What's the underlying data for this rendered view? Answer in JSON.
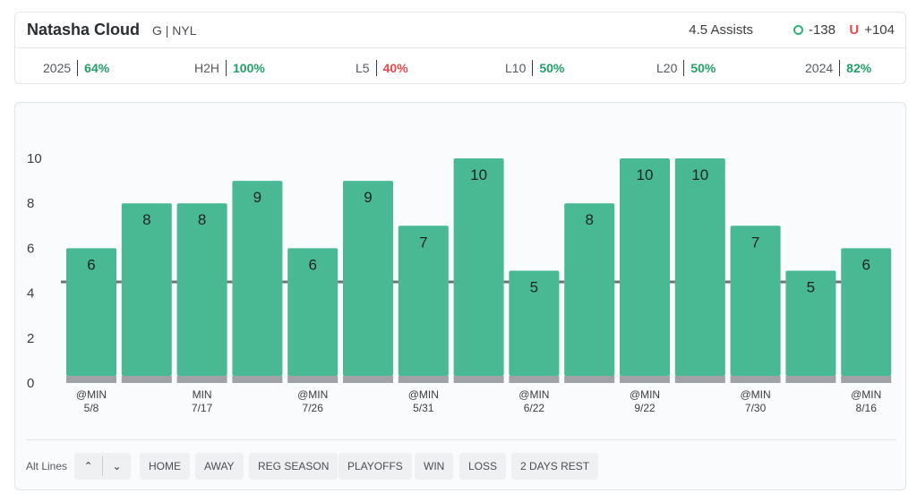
{
  "header": {
    "player_name": "Natasha Cloud",
    "player_meta": "G | NYL",
    "prop_line": "4.5 Assists",
    "over_odds": "-138",
    "under_label": "U",
    "under_odds": "+104"
  },
  "stats": [
    {
      "label": "2025",
      "value": "64%",
      "status": "good"
    },
    {
      "label": "H2H",
      "value": "100%",
      "status": "good"
    },
    {
      "label": "L5",
      "value": "40%",
      "status": "bad"
    },
    {
      "label": "L10",
      "value": "50%",
      "status": "good"
    },
    {
      "label": "L20",
      "value": "50%",
      "status": "good"
    },
    {
      "label": "2024",
      "value": "82%",
      "status": "good"
    }
  ],
  "colors": {
    "bar": "#48b992",
    "bar_base": "#9fa2a6",
    "line": "#6e7175",
    "good": "#23a06a",
    "bad": "#e5484d"
  },
  "chart_data": {
    "type": "bar",
    "values": [
      6,
      8,
      8,
      9,
      6,
      9,
      7,
      10,
      5,
      8,
      10,
      10,
      7,
      5,
      6
    ],
    "x_labels": [
      {
        "index": 0,
        "opponent": "@MIN",
        "date": "5/8"
      },
      {
        "index": 2,
        "opponent": "MIN",
        "date": "7/17"
      },
      {
        "index": 4,
        "opponent": "@MIN",
        "date": "7/26"
      },
      {
        "index": 6,
        "opponent": "@MIN",
        "date": "5/31"
      },
      {
        "index": 8,
        "opponent": "@MIN",
        "date": "6/22"
      },
      {
        "index": 10,
        "opponent": "@MIN",
        "date": "9/22"
      },
      {
        "index": 12,
        "opponent": "@MIN",
        "date": "7/30"
      },
      {
        "index": 14,
        "opponent": "@MIN",
        "date": "8/16"
      }
    ],
    "y_ticks": [
      0,
      2,
      4,
      6,
      8,
      10
    ],
    "ylim": [
      0,
      10
    ],
    "threshold": 4.5,
    "grid": false,
    "legend": "none"
  },
  "filters": {
    "alt_lines_label": "Alt Lines",
    "up_icon": "chevron-up-icon",
    "down_icon": "chevron-down-icon",
    "chips": [
      "HOME",
      "AWAY",
      "REG SEASON",
      "PLAYOFFS",
      "WIN",
      "LOSS",
      "2 DAYS REST"
    ]
  }
}
